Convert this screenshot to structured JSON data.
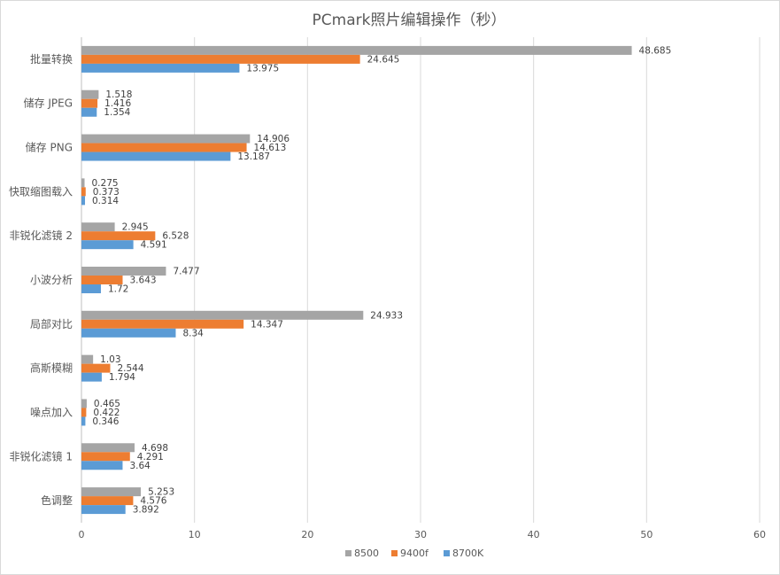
{
  "chart_data": {
    "type": "bar",
    "orientation": "horizontal",
    "title": "PCmark照片编辑操作（秒）",
    "xlabel": "",
    "ylabel": "",
    "categories": [
      "批量转换",
      "储存 JPEG",
      "储存 PNG",
      "快取缩图载入",
      "非锐化滤镜 2",
      "小波分析",
      "局部对比",
      "高斯模糊",
      "噪点加入",
      "非锐化滤镜 1",
      "色调整"
    ],
    "series": [
      {
        "name": "8500",
        "color": "#a5a5a5",
        "values": [
          48.685,
          1.518,
          14.906,
          0.275,
          2.945,
          7.477,
          24.933,
          1.03,
          0.465,
          4.698,
          5.253
        ]
      },
      {
        "name": "9400f",
        "color": "#ed7d31",
        "values": [
          24.645,
          1.416,
          14.613,
          0.373,
          6.528,
          3.643,
          14.347,
          2.544,
          0.422,
          4.291,
          4.576
        ]
      },
      {
        "name": "8700K",
        "color": "#5b9bd5",
        "values": [
          13.975,
          1.354,
          13.187,
          0.314,
          4.591,
          1.72,
          8.34,
          1.794,
          0.346,
          3.64,
          3.892
        ]
      }
    ],
    "xlim": [
      0,
      60
    ],
    "xticks": [
      0,
      10,
      20,
      30,
      40,
      50,
      60
    ],
    "grid": true,
    "legend_position": "bottom"
  }
}
